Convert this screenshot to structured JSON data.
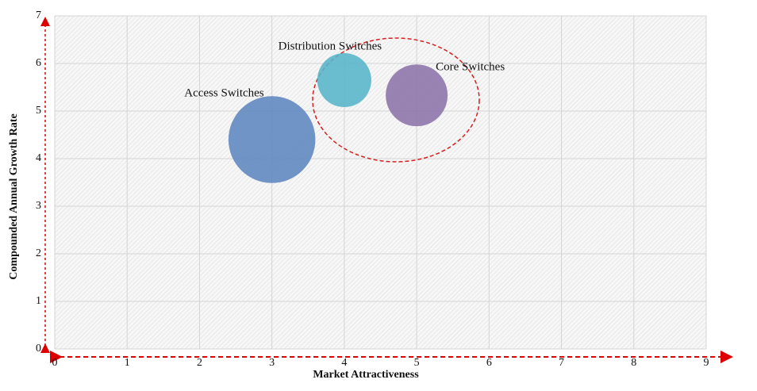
{
  "chart_data": {
    "type": "bubble",
    "x_label": "Market Attractiveness",
    "y_label": "Compounded  Annual  Growth Rate",
    "xlim": [
      0,
      9
    ],
    "xticks": [
      0,
      1,
      2,
      3,
      4,
      5,
      6,
      7,
      8,
      9
    ],
    "ylim": [
      0,
      7
    ],
    "yticks": [
      0,
      1,
      2,
      3,
      4,
      5,
      6,
      7
    ],
    "grid": true,
    "points": [
      {
        "label": "Access Switches",
        "x": 3,
        "y": 4.4,
        "size": 30,
        "color": "#5f86bf"
      },
      {
        "label": "Distribution Switches",
        "x": 4,
        "y": 5.65,
        "size": 11.6,
        "color": "#56b4c9"
      },
      {
        "label": "Core Switches",
        "x": 5,
        "y": 5.33,
        "size": 15.2,
        "color": "#8c73aa"
      }
    ]
  }
}
